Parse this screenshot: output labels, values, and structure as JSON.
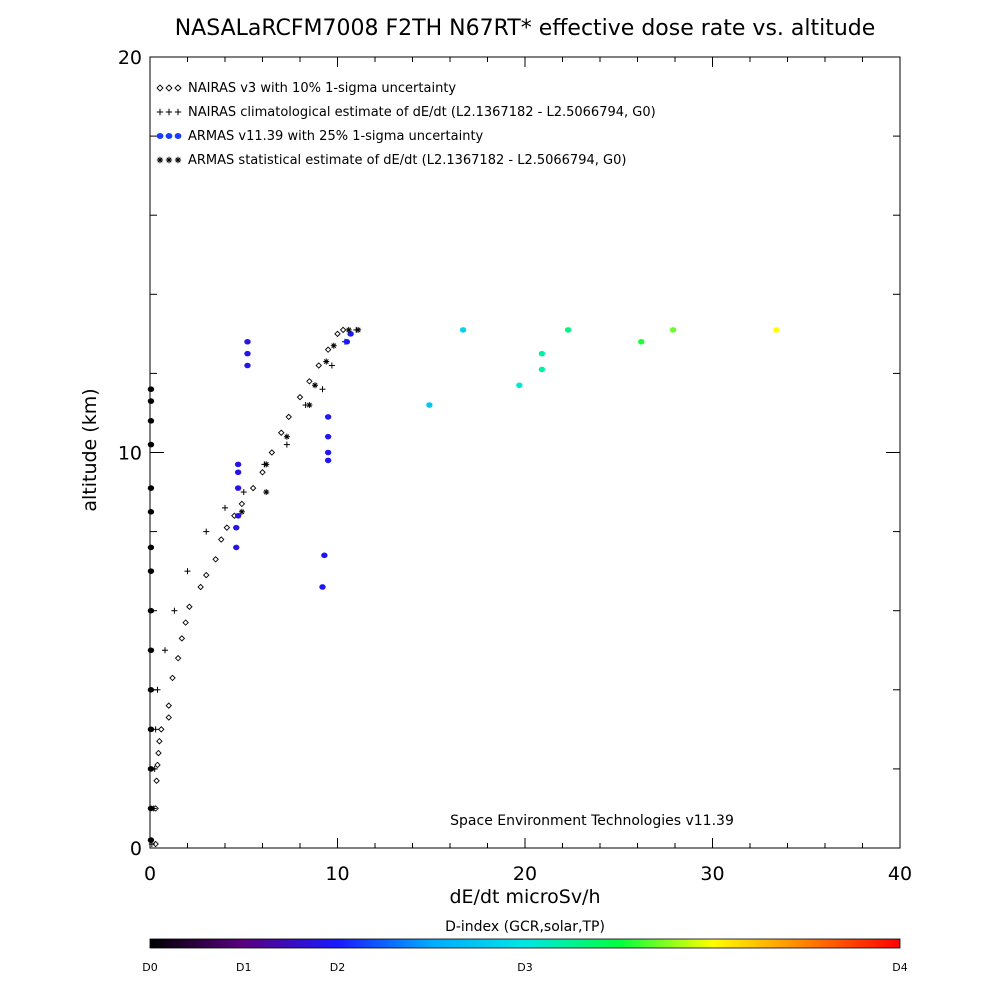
{
  "chart_data": {
    "type": "scatter",
    "title": "NASALaRCFM7008  F2TH N67RT* effective dose rate vs. altitude",
    "xlabel": "dE/dt microSv/h",
    "ylabel": "altitude (km)",
    "xlim": [
      0,
      40
    ],
    "ylim": [
      0,
      20
    ],
    "x_ticks": [
      "0",
      "10",
      "20",
      "30",
      "40"
    ],
    "y_ticks": [
      "0",
      "10",
      "20"
    ],
    "grid": false,
    "legend_position": "top-left",
    "legend": [
      {
        "symbol": "◇◇◇",
        "text": "NAIRAS v3 with 10% 1-sigma uncertainty"
      },
      {
        "symbol": "+++",
        "text": "NAIRAS climatological estimate of dE/dt (L2.1367182 - L2.5066794, G0)"
      },
      {
        "symbol": "●●●",
        "text": "ARMAS v11.39 with 25% 1-sigma uncertainty"
      },
      {
        "symbol": "***",
        "text": "ARMAS statistical estimate of dE/dt (L2.1367182 - L2.5066794, G0)"
      }
    ],
    "annotation": "Space Environment Technologies v11.39",
    "colorbar": {
      "title": "D-index (GCR,solar,TP)",
      "labels": [
        {
          "text": "D0",
          "value": 0
        },
        {
          "text": "D1",
          "value": 1
        },
        {
          "text": "D2",
          "value": 2
        },
        {
          "text": "D3",
          "value": 3
        },
        {
          "text": "D4",
          "value": 4
        }
      ],
      "label_positions": [
        0,
        0.125,
        0.25,
        0.5,
        1.0
      ],
      "colors": [
        "#000000",
        "#5a0080",
        "#1a1aff",
        "#00aaff",
        "#00e6e6",
        "#00ff40",
        "#ffff00",
        "#ff8000",
        "#ff0000"
      ]
    },
    "series": [
      {
        "name": "NAIRAS v3 with 10% 1-sigma uncertainty",
        "marker": "diamond",
        "points": [
          [
            0.3,
            0.1
          ],
          [
            0.3,
            1.0
          ],
          [
            0.35,
            1.7
          ],
          [
            0.4,
            2.1
          ],
          [
            0.45,
            2.4
          ],
          [
            0.5,
            2.7
          ],
          [
            0.6,
            3.0
          ],
          [
            1.0,
            3.3
          ],
          [
            1.0,
            3.6
          ],
          [
            1.2,
            4.3
          ],
          [
            1.5,
            4.8
          ],
          [
            1.7,
            5.3
          ],
          [
            1.9,
            5.7
          ],
          [
            2.1,
            6.1
          ],
          [
            2.7,
            6.6
          ],
          [
            3.0,
            6.9
          ],
          [
            3.5,
            7.3
          ],
          [
            3.8,
            7.8
          ],
          [
            4.1,
            8.1
          ],
          [
            4.5,
            8.4
          ],
          [
            4.9,
            8.7
          ],
          [
            5.5,
            9.1
          ],
          [
            6.0,
            9.5
          ],
          [
            6.5,
            10.0
          ],
          [
            7.0,
            10.5
          ],
          [
            7.4,
            10.9
          ],
          [
            8.0,
            11.4
          ],
          [
            8.5,
            11.8
          ],
          [
            9.0,
            12.2
          ],
          [
            9.5,
            12.6
          ],
          [
            10.0,
            13.0
          ],
          [
            10.3,
            13.1
          ]
        ]
      },
      {
        "name": "NAIRAS climatological estimate of dE/dt (L2.1367182 - L2.5066794, G0)",
        "marker": "plus",
        "points": [
          [
            0.1,
            0.1
          ],
          [
            0.2,
            1.0
          ],
          [
            0.25,
            2.0
          ],
          [
            0.3,
            3.0
          ],
          [
            0.4,
            4.0
          ],
          [
            0.8,
            5.0
          ],
          [
            1.3,
            6.0
          ],
          [
            2.0,
            7.0
          ],
          [
            3.0,
            8.0
          ],
          [
            4.0,
            8.6
          ],
          [
            5.0,
            9.0
          ],
          [
            6.1,
            9.7
          ],
          [
            7.3,
            10.2
          ],
          [
            8.3,
            11.2
          ],
          [
            9.2,
            11.6
          ],
          [
            9.7,
            12.2
          ],
          [
            10.4,
            12.8
          ],
          [
            11.0,
            13.1
          ]
        ]
      },
      {
        "name": "ARMAS v11.39 with 25% 1-sigma uncertainty",
        "marker": "dot",
        "points": [
          [
            0.05,
            0.2
          ],
          [
            0.05,
            1.0
          ],
          [
            0.05,
            2.0
          ],
          [
            0.05,
            3.0
          ],
          [
            0.05,
            4.0
          ],
          [
            0.05,
            5.0
          ],
          [
            0.05,
            6.0
          ],
          [
            0.05,
            7.0
          ],
          [
            0.05,
            7.6
          ],
          [
            0.05,
            8.5
          ],
          [
            0.05,
            9.1
          ],
          [
            0.05,
            10.2
          ],
          [
            0.05,
            10.8
          ],
          [
            0.05,
            11.3
          ],
          [
            0.05,
            11.6
          ],
          [
            4.6,
            7.6
          ],
          [
            4.6,
            8.1
          ],
          [
            4.7,
            8.4
          ],
          [
            4.7,
            9.1
          ],
          [
            4.7,
            9.5
          ],
          [
            4.7,
            9.7
          ],
          [
            5.2,
            12.5
          ],
          [
            5.2,
            12.2
          ],
          [
            5.2,
            12.8
          ],
          [
            9.2,
            6.6
          ],
          [
            9.3,
            7.4
          ],
          [
            9.5,
            9.8
          ],
          [
            9.5,
            10.0
          ],
          [
            9.5,
            10.4
          ],
          [
            9.5,
            10.9
          ],
          [
            10.5,
            12.8
          ],
          [
            10.7,
            13.0
          ],
          [
            14.9,
            11.2
          ],
          [
            16.7,
            13.1
          ],
          [
            19.7,
            11.7
          ],
          [
            20.9,
            12.1
          ],
          [
            20.9,
            12.5
          ],
          [
            22.3,
            13.1
          ],
          [
            26.2,
            12.8
          ],
          [
            27.9,
            13.1
          ],
          [
            33.4,
            13.1
          ]
        ],
        "d_index": [
          0.02,
          0.02,
          0.02,
          0.02,
          0.02,
          0.02,
          0.02,
          0.02,
          0.02,
          0.02,
          0.02,
          0.02,
          0.02,
          0.02,
          0.02,
          0.9,
          0.9,
          0.9,
          0.9,
          0.9,
          0.9,
          0.9,
          0.9,
          0.9,
          0.95,
          0.95,
          0.95,
          0.95,
          0.95,
          0.95,
          1.0,
          1.0,
          1.75,
          1.85,
          2.05,
          2.2,
          2.2,
          2.3,
          2.55,
          2.7,
          3.0
        ]
      },
      {
        "name": "ARMAS statistical estimate of dE/dt (L2.1367182 - L2.5066794, G0)",
        "marker": "asterisk",
        "points": [
          [
            4.9,
            8.5
          ],
          [
            6.2,
            9.0
          ],
          [
            6.2,
            9.7
          ],
          [
            7.3,
            10.4
          ],
          [
            8.5,
            11.2
          ],
          [
            8.8,
            11.7
          ],
          [
            9.4,
            12.3
          ],
          [
            9.8,
            12.7
          ],
          [
            10.6,
            13.1
          ],
          [
            11.1,
            13.1
          ]
        ]
      }
    ]
  }
}
